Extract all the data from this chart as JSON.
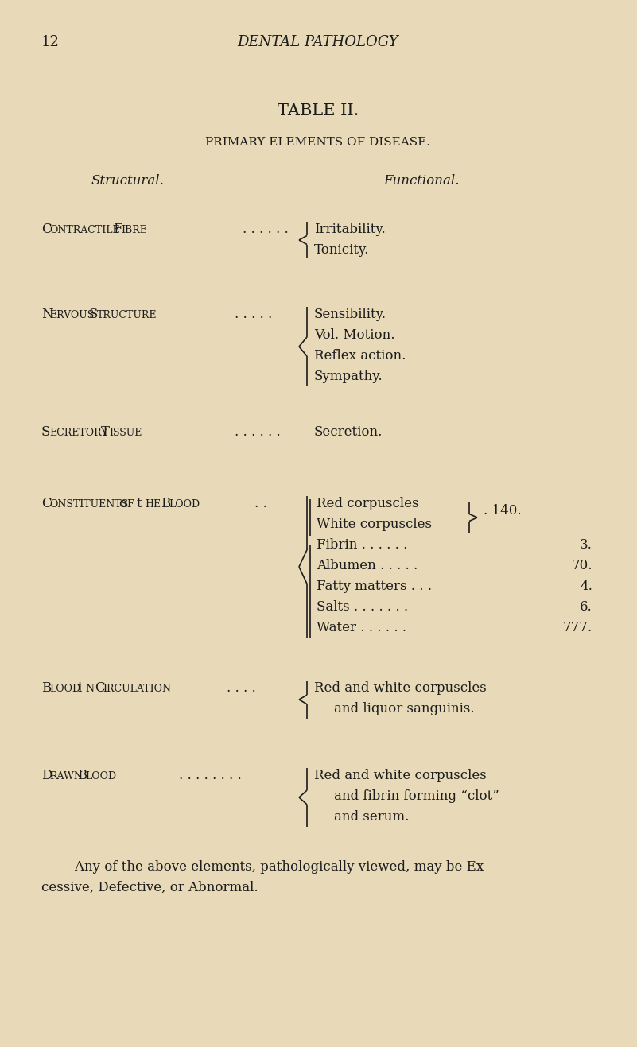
{
  "bg_color": "#e8dab8",
  "text_color": "#1c1c1c",
  "page_number": "12",
  "header": "DENTAL PATHOLOGY",
  "title": "TABLE II.",
  "subtitle": "PRIMARY ELEMENTS OF DISEASE.",
  "col_left_header": "Structural.",
  "col_right_header": "Functional.",
  "footer_line1": "    Any of the above elements, pathologically viewed, may be Ex-",
  "footer_line2": "cessive, Defective, or Abnormal."
}
